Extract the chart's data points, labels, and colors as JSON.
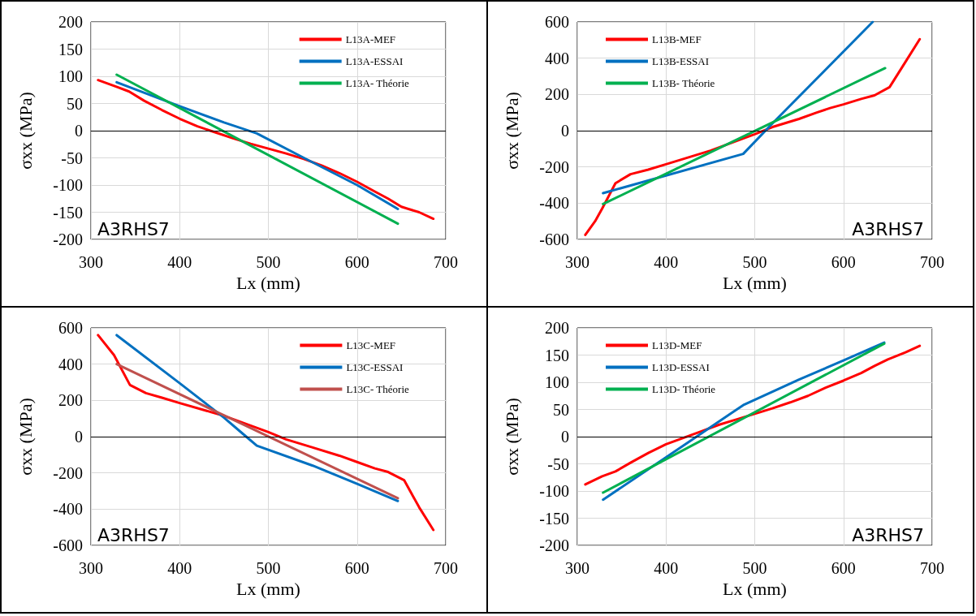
{
  "chart_data": [
    {
      "type": "line",
      "xlabel": "Lx (mm)",
      "ylabel": "σxx (MPa)",
      "xlim": [
        300,
        700
      ],
      "xticks": [
        300,
        400,
        500,
        600,
        700
      ],
      "ylim": [
        -200,
        200
      ],
      "yticks": [
        -200,
        -150,
        -100,
        -50,
        0,
        50,
        100,
        150,
        200
      ],
      "grid": true,
      "legend": "top right",
      "marker": "none",
      "line_style": "solid",
      "annotations": [
        "A3RHS7"
      ],
      "ref_lines": [
        {
          "axis": "y",
          "value": 0,
          "color": "#000000"
        }
      ],
      "series": [
        {
          "name": "L13A-MEF",
          "color": "#ff0000",
          "x": [
            308,
            330,
            343,
            360,
            380,
            400,
            420,
            440,
            460,
            480,
            500,
            520,
            540,
            560,
            580,
            600,
            620,
            635,
            650,
            670,
            686
          ],
          "values": [
            93,
            80,
            72,
            55,
            38,
            22,
            8,
            -3,
            -14,
            -24,
            -33,
            -42,
            -52,
            -64,
            -78,
            -94,
            -112,
            -125,
            -140,
            -150,
            -162
          ]
        },
        {
          "name": "L13A-ESSAI",
          "color": "#0070c0",
          "x": [
            329,
            400,
            450,
            487,
            540,
            600,
            646
          ],
          "values": [
            89,
            45,
            15,
            -5,
            -50,
            -100,
            -144
          ]
        },
        {
          "name": "L13A- Théorie",
          "color": "#00b050",
          "x": [
            329,
            646
          ],
          "values": [
            103,
            -171
          ]
        }
      ]
    },
    {
      "type": "line",
      "xlabel": "Lx (mm)",
      "ylabel": "σxx (MPa)",
      "xlim": [
        300,
        700
      ],
      "xticks": [
        300,
        400,
        500,
        600,
        700
      ],
      "ylim": [
        -600,
        600
      ],
      "yticks": [
        -600,
        -400,
        -200,
        0,
        200,
        400,
        600
      ],
      "grid": true,
      "legend": "top left",
      "marker": "none",
      "line_style": "solid",
      "annotations": [
        "A3RHS7"
      ],
      "ref_lines": [
        {
          "axis": "y",
          "value": 0,
          "color": "#000000"
        }
      ],
      "series": [
        {
          "name": "L13B-MEF",
          "color": "#ff0000",
          "x": [
            309,
            320,
            328,
            343,
            360,
            380,
            400,
            450,
            500,
            520,
            550,
            570,
            585,
            600,
            620,
            635,
            652,
            670,
            686
          ],
          "values": [
            -575,
            -500,
            -430,
            -290,
            -240,
            -215,
            -185,
            -110,
            -20,
            20,
            65,
            100,
            125,
            145,
            175,
            195,
            240,
            380,
            505
          ]
        },
        {
          "name": "L13B-ESSAI",
          "color": "#0070c0",
          "x": [
            329,
            487,
            520,
            633
          ],
          "values": [
            -345,
            -128,
            40,
            600
          ]
        },
        {
          "name": "L13B- Théorie",
          "color": "#00b050",
          "x": [
            329,
            647
          ],
          "values": [
            -405,
            345
          ]
        }
      ]
    },
    {
      "type": "line",
      "xlabel": "Lx (mm)",
      "ylabel": "σxx (MPa)",
      "xlim": [
        300,
        700
      ],
      "xticks": [
        300,
        400,
        500,
        600,
        700
      ],
      "ylim": [
        -600,
        600
      ],
      "yticks": [
        -600,
        -400,
        -200,
        0,
        200,
        400,
        600
      ],
      "grid": true,
      "legend": "top right",
      "marker": "none",
      "line_style": "solid",
      "annotations": [
        "A3RHS7"
      ],
      "ref_lines": [
        {
          "axis": "y",
          "value": 0,
          "color": "#000000"
        }
      ],
      "series": [
        {
          "name": "L13C-MEF",
          "color": "#ff0000",
          "x": [
            308,
            326,
            344,
            362,
            380,
            400,
            450,
            500,
            520,
            550,
            580,
            600,
            620,
            635,
            653,
            670,
            686
          ],
          "values": [
            560,
            450,
            285,
            240,
            215,
            185,
            115,
            25,
            -15,
            -60,
            -105,
            -140,
            -175,
            -195,
            -240,
            -390,
            -515
          ]
        },
        {
          "name": "L13C-ESSAI",
          "color": "#0070c0",
          "x": [
            329,
            400,
            450,
            475,
            487,
            550,
            600,
            646
          ],
          "values": [
            560,
            295,
            105,
            0,
            -50,
            -160,
            -260,
            -355
          ]
        },
        {
          "name": "L13C- Théorie",
          "color": "#c0504d",
          "x": [
            329,
            646
          ],
          "values": [
            400,
            -340
          ]
        }
      ]
    },
    {
      "type": "line",
      "xlabel": "Lx (mm)",
      "ylabel": "σxx (MPa)",
      "xlim": [
        300,
        700
      ],
      "xticks": [
        300,
        400,
        500,
        600,
        700
      ],
      "ylim": [
        -200,
        200
      ],
      "yticks": [
        -200,
        -150,
        -100,
        -50,
        0,
        50,
        100,
        150,
        200
      ],
      "grid": true,
      "legend": "top left",
      "marker": "none",
      "line_style": "solid",
      "annotations": [
        "A3RHS7"
      ],
      "ref_lines": [
        {
          "axis": "y",
          "value": 0,
          "color": "#000000"
        }
      ],
      "series": [
        {
          "name": "L13D-MEF",
          "color": "#ff0000",
          "x": [
            309,
            328,
            343,
            360,
            380,
            400,
            420,
            440,
            460,
            480,
            500,
            520,
            540,
            560,
            580,
            600,
            620,
            635,
            650,
            670,
            686
          ],
          "values": [
            -88,
            -73,
            -64,
            -48,
            -30,
            -14,
            -2,
            10,
            22,
            32,
            42,
            52,
            63,
            75,
            90,
            103,
            117,
            130,
            142,
            155,
            167
          ]
        },
        {
          "name": "L13D-ESSAI",
          "color": "#0070c0",
          "x": [
            329,
            400,
            487,
            550,
            600,
            646
          ],
          "values": [
            -116,
            -38,
            58,
            105,
            140,
            173
          ]
        },
        {
          "name": "L13D- Théorie",
          "color": "#00b050",
          "x": [
            329,
            646
          ],
          "values": [
            -103,
            171
          ]
        }
      ]
    }
  ]
}
